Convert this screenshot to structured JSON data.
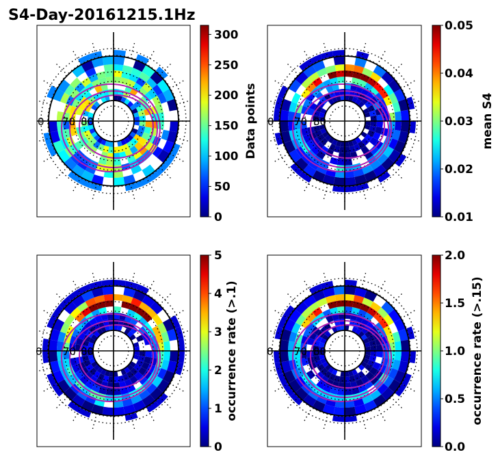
{
  "figure": {
    "title": "S4-Day-20161215.1Hz"
  },
  "chart_data": [
    {
      "type": "heatmap",
      "projection": "polar",
      "panel": "top-left",
      "colormap": "jet",
      "colorbar": {
        "label": "Data points",
        "vmin": 0,
        "vmax": 315,
        "ticks": [
          "0",
          "50",
          "100",
          "150",
          "200",
          "250",
          "300"
        ],
        "tick_values": [
          0,
          50,
          100,
          150,
          200,
          250,
          300
        ]
      },
      "lat_labels": [
        "0",
        "70",
        "80"
      ],
      "intensity_by_ring": [
        0.15,
        0.45,
        0.5,
        0.55,
        0.4,
        0.35,
        0.2
      ]
    },
    {
      "type": "heatmap",
      "projection": "polar",
      "panel": "top-right",
      "colormap": "jet",
      "colorbar": {
        "label": "mean S4",
        "vmin": 0.01,
        "vmax": 0.05,
        "ticks": [
          "0.01",
          "0.02",
          "0.03",
          "0.04",
          "0.05"
        ],
        "tick_values": [
          0.01,
          0.02,
          0.03,
          0.04,
          0.05
        ]
      },
      "lat_labels": [
        "0",
        "70",
        "80"
      ],
      "intensity_by_ring": [
        0.05,
        0.05,
        0.15,
        0.3,
        0.8,
        0.5,
        0.1
      ]
    },
    {
      "type": "heatmap",
      "projection": "polar",
      "panel": "bottom-left",
      "colormap": "jet",
      "colorbar": {
        "label": "occurrence rate (>.1)",
        "vmin": 0,
        "vmax": 5,
        "ticks": [
          "0",
          "1",
          "2",
          "3",
          "4",
          "5"
        ],
        "tick_values": [
          0,
          1,
          2,
          3,
          4,
          5
        ]
      },
      "lat_labels": [
        "0",
        "70",
        "80"
      ],
      "intensity_by_ring": [
        0.05,
        0.05,
        0.1,
        0.3,
        0.9,
        0.6,
        0.1
      ]
    },
    {
      "type": "heatmap",
      "projection": "polar",
      "panel": "bottom-right",
      "colormap": "jet",
      "colorbar": {
        "label": "occurrence rate (>.15)",
        "vmin": 0.0,
        "vmax": 2.0,
        "ticks": [
          "0.0",
          "0.5",
          "1.0",
          "1.5",
          "2.0"
        ],
        "tick_values": [
          0.0,
          0.5,
          1.0,
          1.5,
          2.0
        ]
      },
      "lat_labels": [
        "0",
        "70",
        "80"
      ],
      "intensity_by_ring": [
        0.05,
        0.05,
        0.1,
        0.25,
        0.85,
        0.55,
        0.1
      ]
    }
  ]
}
